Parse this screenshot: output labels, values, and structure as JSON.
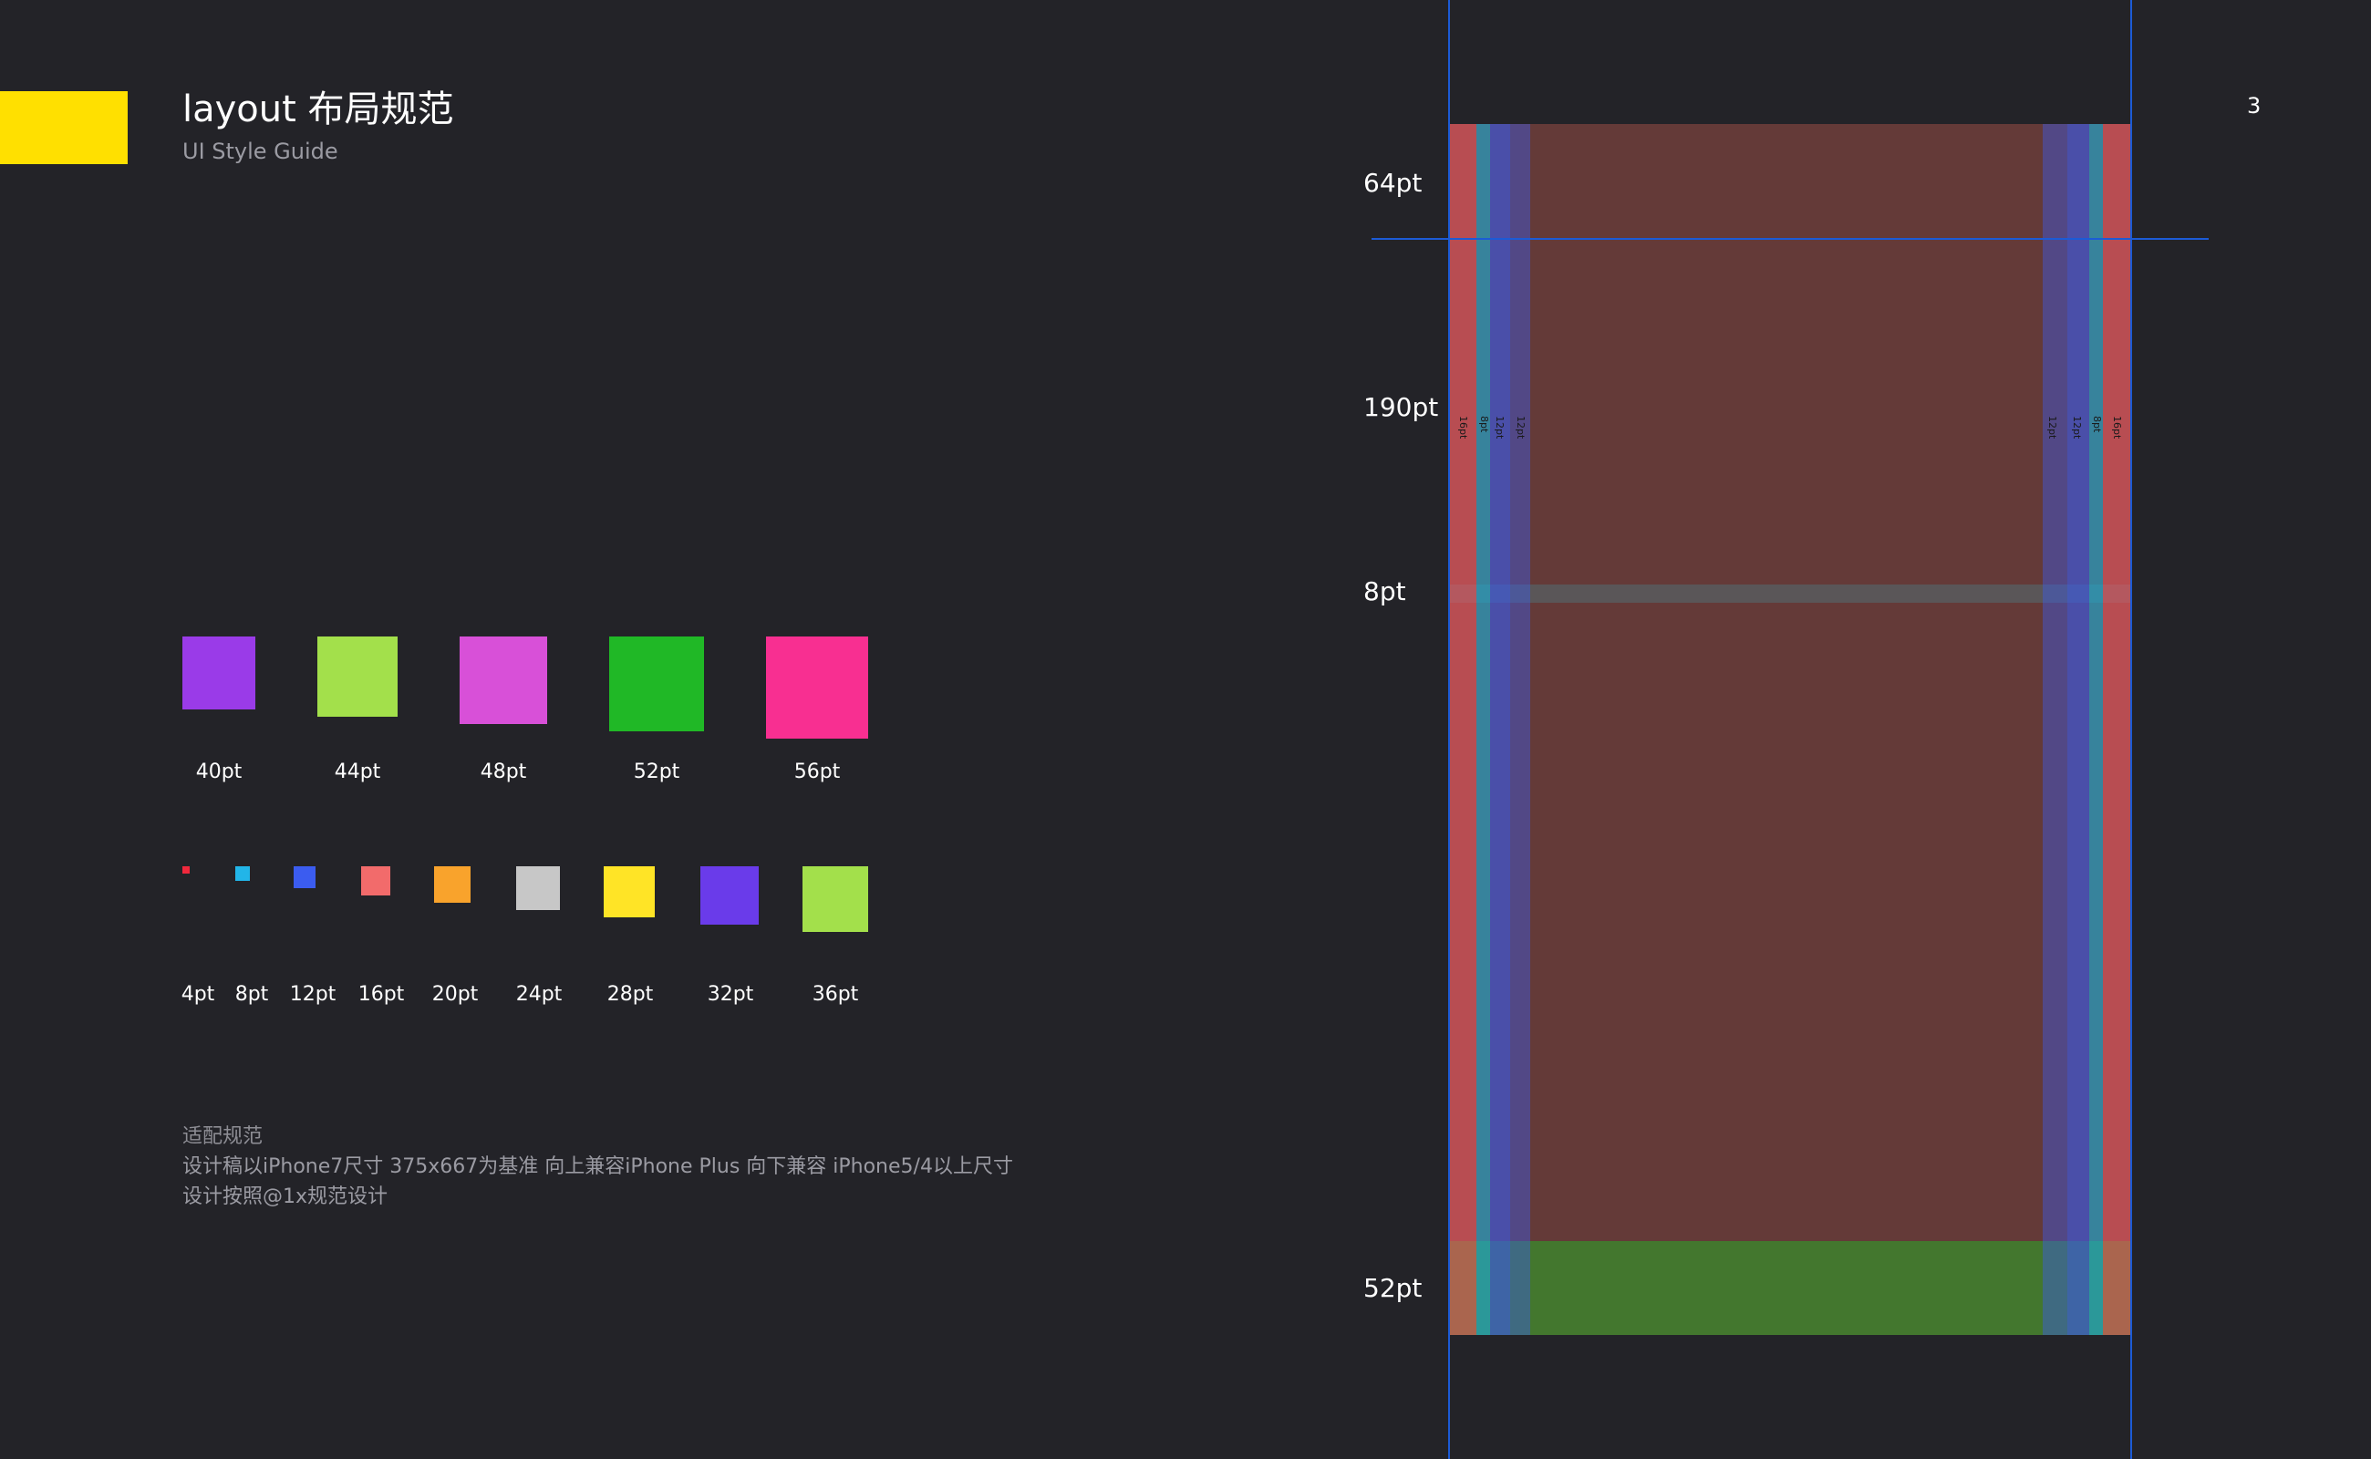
{
  "header": {
    "title": "layout 布局规范",
    "subtitle": "UI Style Guide",
    "page_number": "3"
  },
  "colors": {
    "accent": "#ffe000",
    "background": "#232328",
    "guide_line": "#1c5bd6"
  },
  "large_sizes": [
    {
      "label": "40pt",
      "color": "#9a3be8"
    },
    {
      "label": "44pt",
      "color": "#a3e04b"
    },
    {
      "label": "48pt",
      "color": "#d850d8"
    },
    {
      "label": "52pt",
      "color": "#20b826"
    },
    {
      "label": "56pt",
      "color": "#f82f91"
    }
  ],
  "small_sizes": [
    {
      "label": "4pt",
      "color": "#f0283c"
    },
    {
      "label": "8pt",
      "color": "#22b5e8"
    },
    {
      "label": "12pt",
      "color": "#3b5cf0"
    },
    {
      "label": "16pt",
      "color": "#f26b6b"
    },
    {
      "label": "20pt",
      "color": "#f9a32c"
    },
    {
      "label": "24pt",
      "color": "#c7c7c7"
    },
    {
      "label": "28pt",
      "color": "#ffe426"
    },
    {
      "label": "32pt",
      "color": "#6a3bea"
    },
    {
      "label": "36pt",
      "color": "#a3e04b"
    }
  ],
  "notes": {
    "heading": "适配规范",
    "line1": "设计稿以iPhone7尺寸 375x667为基准 向上兼容iPhone Plus 向下兼容 iPhone5/4以上尺寸",
    "line2": "设计按照@1x规范设计"
  },
  "phone_diagram": {
    "row_labels": [
      "64pt",
      "190pt",
      "8pt",
      "52pt"
    ],
    "left_margins": [
      "16pt",
      "8pt",
      "12pt",
      "12pt"
    ],
    "right_margins": [
      "12pt",
      "12pt",
      "8pt",
      "16pt"
    ]
  }
}
